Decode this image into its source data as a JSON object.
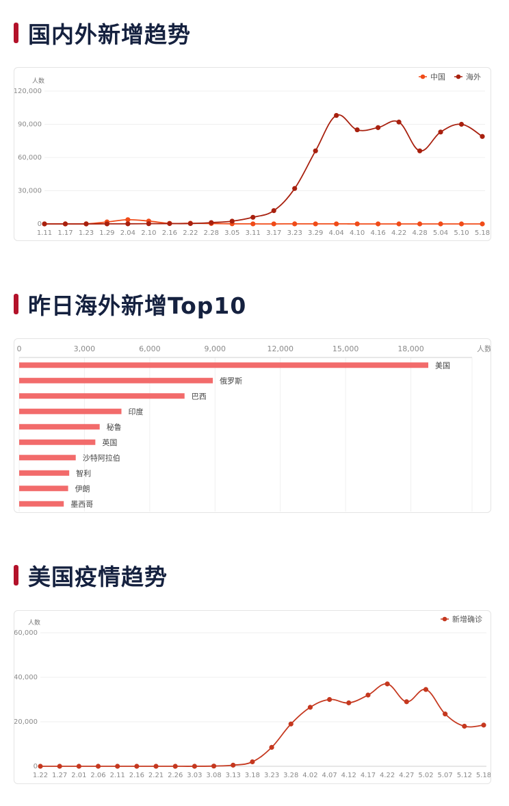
{
  "sections": {
    "s1_title": "国内外新增趋势",
    "s2_title": "昨日海外新增Top10",
    "s3_title": "美国疫情趋势"
  },
  "chart_data": [
    {
      "type": "line",
      "ylabel": "人数",
      "ylim": [
        0,
        120000
      ],
      "yticks": [
        "0",
        "30,000",
        "60,000",
        "90,000",
        "120,000"
      ],
      "xtick_labels": [
        "1.11",
        "1.17",
        "1.23",
        "1.29",
        "2.04",
        "2.10",
        "2.16",
        "2.22",
        "2.28",
        "3.05",
        "3.11",
        "3.17",
        "3.23",
        "3.29",
        "4.04",
        "4.10",
        "4.16",
        "4.22",
        "4.28",
        "5.04",
        "5.10",
        "5.18"
      ],
      "legend_position": "top-right",
      "series": [
        {
          "name": "中国",
          "color": "#f04b18",
          "values": [
            50,
            60,
            100,
            1800,
            3800,
            2600,
            500,
            600,
            400,
            120,
            40,
            30,
            60,
            50,
            40,
            30,
            15,
            10,
            5,
            3,
            2,
            5
          ]
        },
        {
          "name": "海外",
          "color": "#a8200e",
          "values": [
            0,
            5,
            10,
            50,
            100,
            220,
            300,
            350,
            1200,
            2500,
            6000,
            12000,
            32000,
            66000,
            98000,
            85000,
            87000,
            92000,
            66000,
            83000,
            90000,
            79000
          ]
        }
      ]
    },
    {
      "type": "bar",
      "orientation": "horizontal",
      "xlabel": "人数",
      "xlim": [
        0,
        21000
      ],
      "xticks": [
        "0",
        "3,000",
        "6,000",
        "9,000",
        "12,000",
        "15,000",
        "18,000"
      ],
      "color": "#f26b6b",
      "categories": [
        "美国",
        "俄罗斯",
        "巴西",
        "印度",
        "秘鲁",
        "英国",
        "沙特阿拉伯",
        "智利",
        "伊朗",
        "墨西哥"
      ],
      "values": [
        18800,
        8900,
        7600,
        4700,
        3700,
        3500,
        2600,
        2300,
        2250,
        2050
      ]
    },
    {
      "type": "line",
      "ylabel": "人数",
      "ylim": [
        0,
        60000
      ],
      "yticks": [
        "0",
        "20,000",
        "40,000",
        "60,000"
      ],
      "xtick_labels": [
        "1.22",
        "1.27",
        "2.01",
        "2.06",
        "2.11",
        "2.16",
        "2.21",
        "2.26",
        "3.03",
        "3.08",
        "3.13",
        "3.18",
        "3.23",
        "3.28",
        "4.02",
        "4.07",
        "4.12",
        "4.17",
        "4.22",
        "4.27",
        "5.02",
        "5.07",
        "5.12",
        "5.18"
      ],
      "legend_position": "top-right",
      "series": [
        {
          "name": "新增确诊",
          "color": "#c5381f",
          "values": [
            0,
            0,
            0,
            0,
            0,
            0,
            0,
            0,
            0,
            100,
            500,
            2000,
            8500,
            19000,
            26500,
            30000,
            28500,
            32000,
            37000,
            29000,
            34500,
            23500,
            18000,
            18500
          ]
        }
      ]
    }
  ]
}
